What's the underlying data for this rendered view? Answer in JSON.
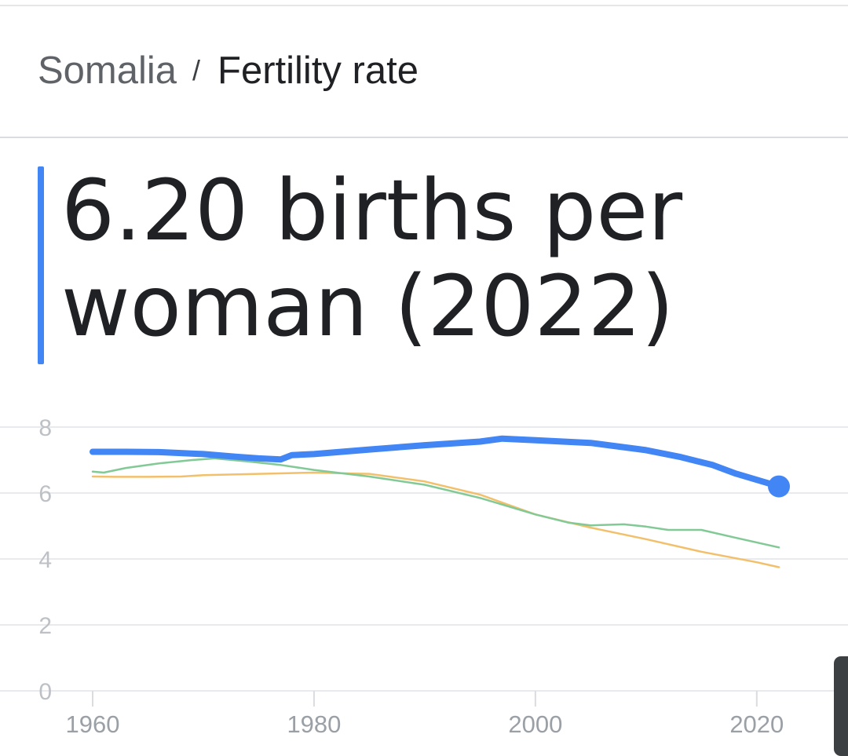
{
  "breadcrumb": {
    "country": "Somalia",
    "separator": "/",
    "metric": "Fertility rate"
  },
  "headline": {
    "line1": "6.20 births per",
    "line2": "woman (2022)"
  },
  "chart_data": {
    "type": "line",
    "title": "",
    "xlabel": "",
    "ylabel": "",
    "xlim": [
      1960,
      2022
    ],
    "ylim": [
      0,
      8
    ],
    "x_ticks": [
      "1960",
      "1980",
      "2000",
      "2020"
    ],
    "y_ticks": [
      "0",
      "2",
      "4",
      "6",
      "8"
    ],
    "grid": "horizontal",
    "legend": "none",
    "series": [
      {
        "color": "#f2c06b",
        "emphasis": false,
        "points": [
          [
            1960,
            6.5
          ],
          [
            1962,
            6.49
          ],
          [
            1965,
            6.49
          ],
          [
            1968,
            6.5
          ],
          [
            1970,
            6.54
          ],
          [
            1975,
            6.58
          ],
          [
            1980,
            6.62
          ],
          [
            1985,
            6.58
          ],
          [
            1990,
            6.35
          ],
          [
            1995,
            5.95
          ],
          [
            2000,
            5.35
          ],
          [
            2005,
            4.95
          ],
          [
            2010,
            4.6
          ],
          [
            2015,
            4.22
          ],
          [
            2020,
            3.9
          ],
          [
            2022,
            3.75
          ]
        ]
      },
      {
        "color": "#81c995",
        "emphasis": false,
        "points": [
          [
            1960,
            6.65
          ],
          [
            1961,
            6.62
          ],
          [
            1963,
            6.76
          ],
          [
            1966,
            6.9
          ],
          [
            1969,
            7.0
          ],
          [
            1971,
            7.05
          ],
          [
            1974,
            6.96
          ],
          [
            1977,
            6.85
          ],
          [
            1980,
            6.7
          ],
          [
            1985,
            6.5
          ],
          [
            1990,
            6.25
          ],
          [
            1995,
            5.85
          ],
          [
            2000,
            5.35
          ],
          [
            2003,
            5.1
          ],
          [
            2005,
            5.02
          ],
          [
            2008,
            5.05
          ],
          [
            2010,
            4.98
          ],
          [
            2012,
            4.88
          ],
          [
            2015,
            4.88
          ],
          [
            2018,
            4.65
          ],
          [
            2022,
            4.35
          ]
        ]
      },
      {
        "color": "#4285f4",
        "emphasis": true,
        "points": [
          [
            1960,
            7.25
          ],
          [
            1963,
            7.25
          ],
          [
            1966,
            7.24
          ],
          [
            1970,
            7.18
          ],
          [
            1973,
            7.1
          ],
          [
            1975,
            7.05
          ],
          [
            1977,
            7.02
          ],
          [
            1978,
            7.15
          ],
          [
            1980,
            7.18
          ],
          [
            1985,
            7.32
          ],
          [
            1990,
            7.45
          ],
          [
            1995,
            7.56
          ],
          [
            1997,
            7.65
          ],
          [
            2000,
            7.6
          ],
          [
            2005,
            7.52
          ],
          [
            2010,
            7.3
          ],
          [
            2013,
            7.1
          ],
          [
            2016,
            6.85
          ],
          [
            2018,
            6.6
          ],
          [
            2020,
            6.4
          ],
          [
            2022,
            6.2
          ]
        ]
      }
    ]
  }
}
